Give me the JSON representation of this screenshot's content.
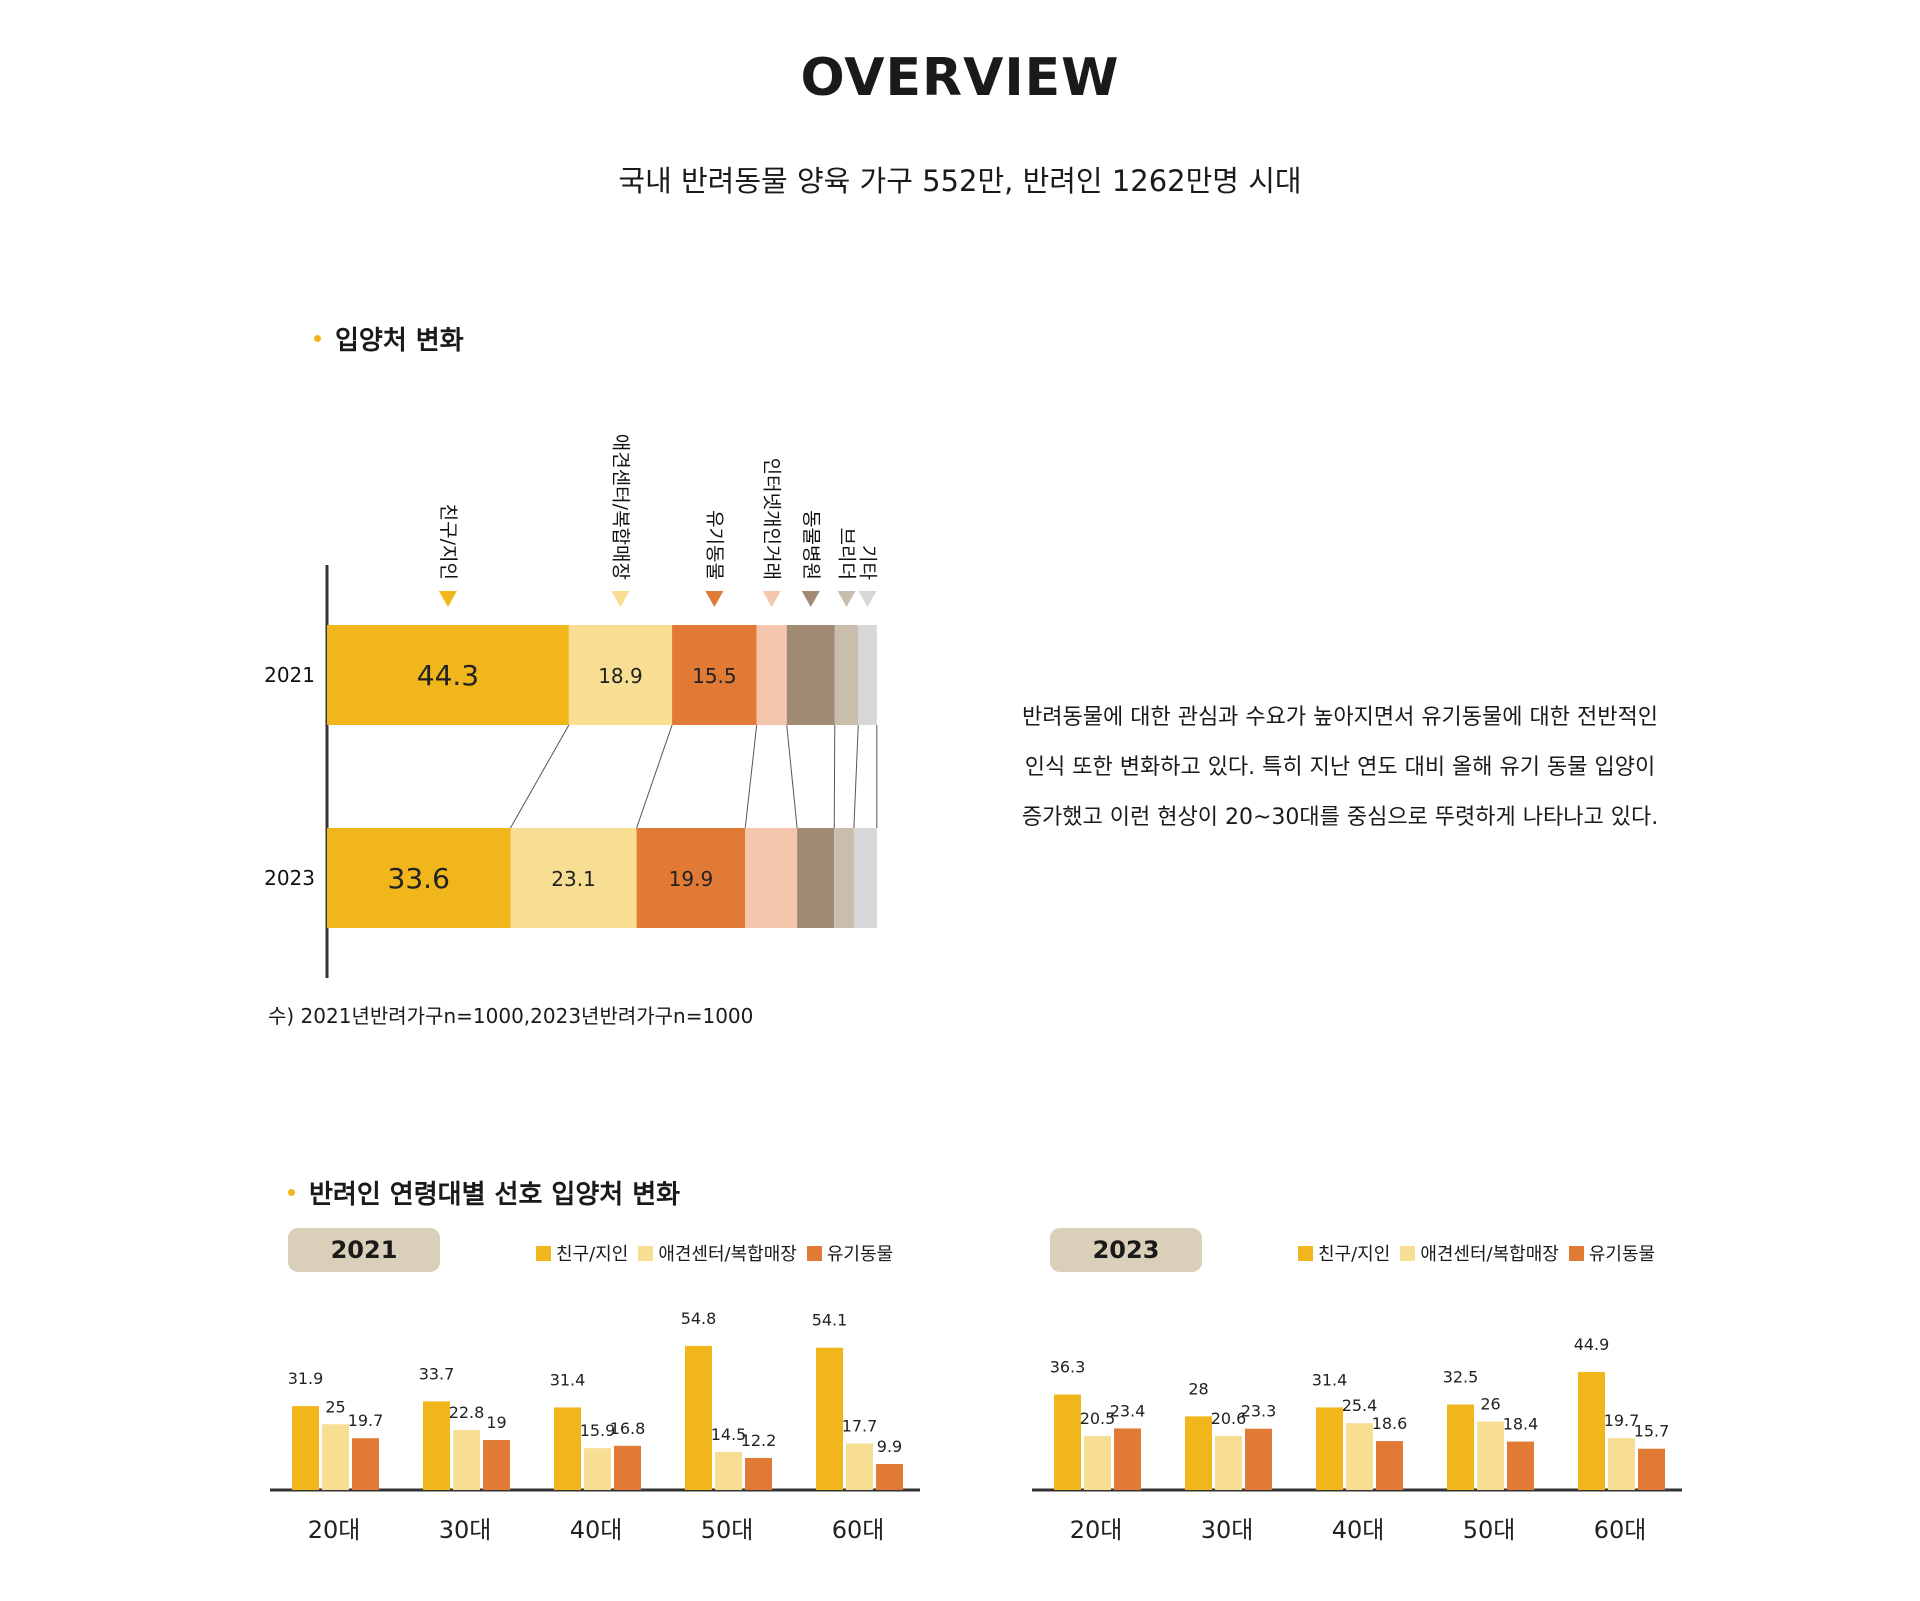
{
  "header": {
    "title": "OVERVIEW",
    "subtitle": "국내 반려동물 양육 가구 552만, 반려인 1262만명 시대"
  },
  "colors": {
    "friend": "#F2B61D",
    "petshop": "#F7DE93",
    "abandoned": "#E07A35",
    "internet": "#F4C7AC",
    "hospital": "#A08A73",
    "breeder": "#C9BDAE",
    "other": "#D7D7D7",
    "accent": "#F2B61D",
    "pill": "#DACFB8",
    "axis": "#333333"
  },
  "section1": {
    "title": "입양처 변화",
    "footnote": "수) 2021년반려가구n=1000,2023년반려가구n=1000",
    "description": [
      "반려동물에 대한 관심과 수요가 높아지면서 유기동물에 대한 전반적인",
      "인식 또한 변화하고 있다. 특히 지난 연도 대비 올해 유기 동물 입양이",
      "증가했고 이런 현상이 20~30대를 중심으로 뚜렷하게 나타나고 있다."
    ]
  },
  "section2": {
    "title": "반려인 연령대별 선호 입양처 변화"
  },
  "chart_data": [
    {
      "type": "bar",
      "orientation": "horizontal",
      "stacked": true,
      "categories": [
        "2021",
        "2023"
      ],
      "series": [
        {
          "name": "친구/지인",
          "values": [
            44.3,
            33.6
          ],
          "labels": [
            "44.3",
            "33.6"
          ]
        },
        {
          "name": "애견센터/복합매장",
          "values": [
            18.9,
            23.1
          ],
          "labels": [
            "18.9",
            "23.1"
          ]
        },
        {
          "name": "유기동물",
          "values": [
            15.5,
            19.9
          ],
          "labels": [
            "15.5",
            "19.9"
          ]
        },
        {
          "name": "인터넷개인거래",
          "values": [
            5.5,
            9.5
          ],
          "labels": [
            "",
            ""
          ]
        },
        {
          "name": "동물병원",
          "values": [
            8.8,
            6.8
          ],
          "labels": [
            "",
            ""
          ]
        },
        {
          "name": "브리더",
          "values": [
            4.3,
            3.6
          ],
          "labels": [
            "",
            ""
          ]
        },
        {
          "name": "기타",
          "values": [
            3.4,
            4.2
          ],
          "labels": [
            "",
            ""
          ]
        }
      ],
      "legend": "top-labels",
      "xlim": [
        0,
        100
      ]
    },
    {
      "type": "bar",
      "title": "2021",
      "categories": [
        "20대",
        "30대",
        "40대",
        "50대",
        "60대"
      ],
      "series": [
        {
          "name": "친구/지인",
          "values": [
            31.9,
            33.7,
            31.4,
            54.8,
            54.1
          ]
        },
        {
          "name": "애견센터/복합매장",
          "values": [
            25,
            22.8,
            15.9,
            14.5,
            17.7
          ]
        },
        {
          "name": "유기동물",
          "values": [
            19.7,
            19,
            16.8,
            12.2,
            9.9
          ]
        }
      ],
      "ylim": [
        0,
        60
      ],
      "legend": "top-right"
    },
    {
      "type": "bar",
      "title": "2023",
      "categories": [
        "20대",
        "30대",
        "40대",
        "50대",
        "60대"
      ],
      "series": [
        {
          "name": "친구/지인",
          "values": [
            36.3,
            28,
            31.4,
            32.5,
            44.9
          ]
        },
        {
          "name": "애견센터/복합매장",
          "values": [
            20.5,
            20.6,
            25.4,
            26,
            19.7
          ]
        },
        {
          "name": "유기동물",
          "values": [
            23.4,
            23.3,
            18.6,
            18.4,
            15.7
          ]
        }
      ],
      "ylim": [
        0,
        60
      ],
      "legend": "top-right"
    }
  ]
}
